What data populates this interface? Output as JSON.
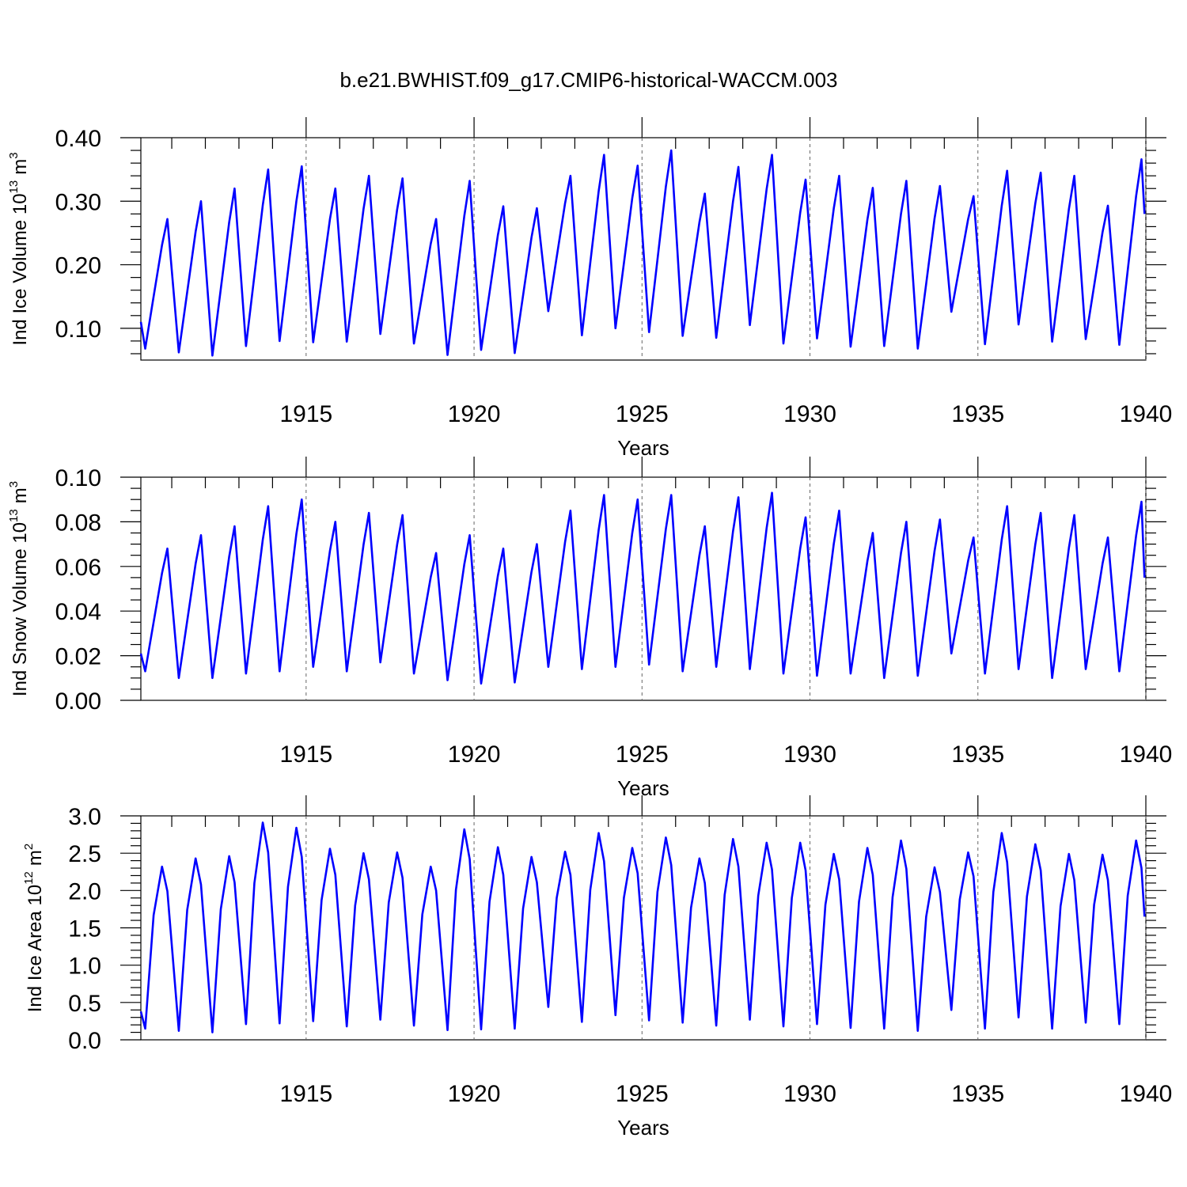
{
  "chart_data": [
    {
      "type": "line",
      "title": "b.e21.BWHIST.f09_g17.CMIP6-historical-WACCM.003",
      "ylabel": "Ind Ice Volume 10",
      "ylabel_exponent": "13",
      "ylabel_unit": "m",
      "ylabel_unit_exponent": "3",
      "xlabel": "Years",
      "color": "#0000ff",
      "xgrid": true,
      "xlim": [
        1910.08,
        1940
      ],
      "xticks": [
        1915,
        1920,
        1925,
        1930,
        1935,
        1940
      ],
      "xminor": [
        1911,
        1912,
        1913,
        1914,
        1916,
        1917,
        1918,
        1919,
        1921,
        1922,
        1923,
        1924,
        1926,
        1927,
        1928,
        1929,
        1931,
        1932,
        1933,
        1934,
        1936,
        1937,
        1938,
        1939
      ],
      "ylim": [
        0.05,
        0.4
      ],
      "yticks": [
        {
          "value": 0.1,
          "label": "0.10"
        },
        {
          "value": 0.2,
          "label": "0.20"
        },
        {
          "value": 0.3,
          "label": "0.30"
        },
        {
          "value": 0.4,
          "label": "0.40"
        }
      ],
      "yminor": [
        0.06,
        0.08,
        0.12,
        0.14,
        0.16,
        0.18,
        0.22,
        0.24,
        0.26,
        0.28,
        0.32,
        0.34,
        0.36,
        0.38
      ],
      "x": [
        1910.08,
        1910.21,
        1910.46,
        1910.71,
        1910.87,
        1911.21,
        1911.46,
        1911.71,
        1911.87,
        1912.21,
        1912.46,
        1912.71,
        1912.87,
        1913.21,
        1913.46,
        1913.71,
        1913.87,
        1914.21,
        1914.46,
        1914.71,
        1914.87,
        1915.21,
        1915.46,
        1915.71,
        1915.87,
        1916.21,
        1916.46,
        1916.71,
        1916.87,
        1917.21,
        1917.46,
        1917.71,
        1917.87,
        1918.21,
        1918.46,
        1918.71,
        1918.87,
        1919.21,
        1919.46,
        1919.71,
        1919.87,
        1920.21,
        1920.46,
        1920.71,
        1920.87,
        1921.21,
        1921.46,
        1921.71,
        1921.87,
        1922.21,
        1922.46,
        1922.71,
        1922.87,
        1923.21,
        1923.46,
        1923.71,
        1923.87,
        1924.21,
        1924.46,
        1924.71,
        1924.87,
        1925.21,
        1925.46,
        1925.71,
        1925.87,
        1926.21,
        1926.46,
        1926.71,
        1926.87,
        1927.21,
        1927.46,
        1927.71,
        1927.87,
        1928.21,
        1928.46,
        1928.71,
        1928.87,
        1929.21,
        1929.46,
        1929.71,
        1929.87,
        1930.21,
        1930.46,
        1930.71,
        1930.87,
        1931.21,
        1931.46,
        1931.71,
        1931.87,
        1932.21,
        1932.46,
        1932.71,
        1932.87,
        1933.21,
        1933.46,
        1933.71,
        1933.87,
        1934.21,
        1934.46,
        1934.71,
        1934.87,
        1935.21,
        1935.46,
        1935.71,
        1935.87,
        1936.21,
        1936.46,
        1936.71,
        1936.87,
        1937.21,
        1937.46,
        1937.71,
        1937.87,
        1938.21,
        1938.46,
        1938.71,
        1938.87,
        1939.21,
        1939.46,
        1939.71,
        1939.87,
        1939.96
      ],
      "values": [
        0.11,
        0.068,
        0.15,
        0.231,
        0.272,
        0.062,
        0.157,
        0.252,
        0.3,
        0.057,
        0.162,
        0.267,
        0.32,
        0.072,
        0.183,
        0.294,
        0.35,
        0.08,
        0.19,
        0.3,
        0.355,
        0.078,
        0.175,
        0.272,
        0.32,
        0.079,
        0.183,
        0.288,
        0.34,
        0.091,
        0.189,
        0.287,
        0.336,
        0.076,
        0.154,
        0.233,
        0.272,
        0.058,
        0.168,
        0.277,
        0.332,
        0.066,
        0.156,
        0.247,
        0.292,
        0.061,
        0.152,
        0.243,
        0.289,
        0.127,
        0.212,
        0.297,
        0.34,
        0.089,
        0.203,
        0.316,
        0.373,
        0.1,
        0.202,
        0.305,
        0.356,
        0.094,
        0.208,
        0.323,
        0.38,
        0.088,
        0.178,
        0.267,
        0.312,
        0.085,
        0.193,
        0.3,
        0.354,
        0.105,
        0.212,
        0.319,
        0.373,
        0.076,
        0.179,
        0.282,
        0.334,
        0.084,
        0.186,
        0.289,
        0.34,
        0.071,
        0.171,
        0.271,
        0.321,
        0.072,
        0.176,
        0.28,
        0.332,
        0.068,
        0.17,
        0.273,
        0.324,
        0.126,
        0.199,
        0.272,
        0.308,
        0.075,
        0.184,
        0.293,
        0.348,
        0.106,
        0.202,
        0.297,
        0.345,
        0.079,
        0.183,
        0.288,
        0.34,
        0.083,
        0.167,
        0.251,
        0.293,
        0.074,
        0.191,
        0.308,
        0.366,
        0.28
      ]
    },
    {
      "type": "line",
      "ylabel": "Ind Snow Volume 10",
      "ylabel_exponent": "13",
      "ylabel_unit": "m",
      "ylabel_unit_exponent": "3",
      "xlabel": "Years",
      "color": "#0000ff",
      "xgrid": true,
      "xlim": [
        1910.08,
        1940
      ],
      "xticks": [
        1915,
        1920,
        1925,
        1930,
        1935,
        1940
      ],
      "xminor": [
        1911,
        1912,
        1913,
        1914,
        1916,
        1917,
        1918,
        1919,
        1921,
        1922,
        1923,
        1924,
        1926,
        1927,
        1928,
        1929,
        1931,
        1932,
        1933,
        1934,
        1936,
        1937,
        1938,
        1939
      ],
      "ylim": [
        0,
        0.1
      ],
      "yticks": [
        {
          "value": 0,
          "label": "0.00"
        },
        {
          "value": 0.02,
          "label": "0.02"
        },
        {
          "value": 0.04,
          "label": "0.04"
        },
        {
          "value": 0.06,
          "label": "0.06"
        },
        {
          "value": 0.08,
          "label": "0.08"
        },
        {
          "value": 0.1,
          "label": "0.10"
        }
      ],
      "yminor": [
        0.005,
        0.01,
        0.015,
        0.025,
        0.03,
        0.035,
        0.045,
        0.05,
        0.055,
        0.065,
        0.07,
        0.075,
        0.085,
        0.09,
        0.095
      ],
      "x": [
        1910.08,
        1910.21,
        1910.46,
        1910.71,
        1910.87,
        1911.21,
        1911.46,
        1911.71,
        1911.87,
        1912.21,
        1912.46,
        1912.71,
        1912.87,
        1913.21,
        1913.46,
        1913.71,
        1913.87,
        1914.21,
        1914.46,
        1914.71,
        1914.87,
        1915.21,
        1915.46,
        1915.71,
        1915.87,
        1916.21,
        1916.46,
        1916.71,
        1916.87,
        1917.21,
        1917.46,
        1917.71,
        1917.87,
        1918.21,
        1918.46,
        1918.71,
        1918.87,
        1919.21,
        1919.46,
        1919.71,
        1919.87,
        1920.21,
        1920.46,
        1920.71,
        1920.87,
        1921.21,
        1921.46,
        1921.71,
        1921.87,
        1922.21,
        1922.46,
        1922.71,
        1922.87,
        1923.21,
        1923.46,
        1923.71,
        1923.87,
        1924.21,
        1924.46,
        1924.71,
        1924.87,
        1925.21,
        1925.46,
        1925.71,
        1925.87,
        1926.21,
        1926.46,
        1926.71,
        1926.87,
        1927.21,
        1927.46,
        1927.71,
        1927.87,
        1928.21,
        1928.46,
        1928.71,
        1928.87,
        1929.21,
        1929.46,
        1929.71,
        1929.87,
        1930.21,
        1930.46,
        1930.71,
        1930.87,
        1931.21,
        1931.46,
        1931.71,
        1931.87,
        1932.21,
        1932.46,
        1932.71,
        1932.87,
        1933.21,
        1933.46,
        1933.71,
        1933.87,
        1934.21,
        1934.46,
        1934.71,
        1934.87,
        1935.21,
        1935.46,
        1935.71,
        1935.87,
        1936.21,
        1936.46,
        1936.71,
        1936.87,
        1937.21,
        1937.46,
        1937.71,
        1937.87,
        1938.21,
        1938.46,
        1938.71,
        1938.87,
        1939.21,
        1939.46,
        1939.71,
        1939.87,
        1939.96
      ],
      "values": [
        0.021,
        0.013,
        0.035,
        0.057,
        0.068,
        0.01,
        0.0356,
        0.0612,
        0.074,
        0.01,
        0.0372,
        0.0644,
        0.078,
        0.012,
        0.042,
        0.072,
        0.087,
        0.013,
        0.0438,
        0.0746,
        0.09,
        0.015,
        0.041,
        0.067,
        0.08,
        0.013,
        0.0414,
        0.0698,
        0.084,
        0.017,
        0.0434,
        0.0698,
        0.083,
        0.012,
        0.0336,
        0.0552,
        0.066,
        0.009,
        0.035,
        0.061,
        0.074,
        0.0075,
        0.0317,
        0.0559,
        0.068,
        0.008,
        0.0328,
        0.0576,
        0.07,
        0.015,
        0.043,
        0.071,
        0.085,
        0.014,
        0.0452,
        0.0764,
        0.092,
        0.015,
        0.045,
        0.075,
        0.09,
        0.016,
        0.0464,
        0.0768,
        0.092,
        0.013,
        0.039,
        0.065,
        0.078,
        0.015,
        0.0454,
        0.0758,
        0.091,
        0.014,
        0.0456,
        0.0772,
        0.093,
        0.012,
        0.04,
        0.068,
        0.082,
        0.011,
        0.0406,
        0.0702,
        0.085,
        0.012,
        0.0372,
        0.0624,
        0.075,
        0.01,
        0.038,
        0.066,
        0.08,
        0.011,
        0.039,
        0.067,
        0.081,
        0.021,
        0.0418,
        0.0626,
        0.073,
        0.012,
        0.042,
        0.072,
        0.087,
        0.014,
        0.042,
        0.07,
        0.084,
        0.01,
        0.0392,
        0.0684,
        0.083,
        0.014,
        0.0376,
        0.0612,
        0.073,
        0.013,
        0.0434,
        0.0738,
        0.089,
        0.055
      ]
    },
    {
      "type": "line",
      "ylabel": "Ind Ice Area 10",
      "ylabel_exponent": "12",
      "ylabel_unit": "m",
      "ylabel_unit_exponent": "2",
      "xlabel": "Years",
      "color": "#0000ff",
      "xgrid": true,
      "xlim": [
        1910.08,
        1940
      ],
      "xticks": [
        1915,
        1920,
        1925,
        1930,
        1935,
        1940
      ],
      "xminor": [
        1911,
        1912,
        1913,
        1914,
        1916,
        1917,
        1918,
        1919,
        1921,
        1922,
        1923,
        1924,
        1926,
        1927,
        1928,
        1929,
        1931,
        1932,
        1933,
        1934,
        1936,
        1937,
        1938,
        1939
      ],
      "ylim": [
        0,
        3
      ],
      "yticks": [
        {
          "value": 0,
          "label": "0.0"
        },
        {
          "value": 0.5,
          "label": "0.5"
        },
        {
          "value": 1,
          "label": "1.0"
        },
        {
          "value": 1.5,
          "label": "1.5"
        },
        {
          "value": 2,
          "label": "2.0"
        },
        {
          "value": 2.5,
          "label": "2.5"
        },
        {
          "value": 3,
          "label": "3.0"
        }
      ],
      "yminor": [
        0.1,
        0.2,
        0.3,
        0.4,
        0.6,
        0.7,
        0.8,
        0.9,
        1.1,
        1.2,
        1.3,
        1.4,
        1.6,
        1.7,
        1.8,
        1.9,
        2.1,
        2.2,
        2.3,
        2.4,
        2.6,
        2.7,
        2.8,
        2.9
      ],
      "x": [
        1910.08,
        1910.21,
        1910.46,
        1910.71,
        1910.87,
        1911.21,
        1911.46,
        1911.71,
        1911.87,
        1912.21,
        1912.46,
        1912.71,
        1912.87,
        1913.21,
        1913.46,
        1913.71,
        1913.87,
        1914.21,
        1914.46,
        1914.71,
        1914.87,
        1915.21,
        1915.46,
        1915.71,
        1915.87,
        1916.21,
        1916.46,
        1916.71,
        1916.87,
        1917.21,
        1917.46,
        1917.71,
        1917.87,
        1918.21,
        1918.46,
        1918.71,
        1918.87,
        1919.21,
        1919.46,
        1919.71,
        1919.87,
        1920.21,
        1920.46,
        1920.71,
        1920.87,
        1921.21,
        1921.46,
        1921.71,
        1921.87,
        1922.21,
        1922.46,
        1922.71,
        1922.87,
        1923.21,
        1923.46,
        1923.71,
        1923.87,
        1924.21,
        1924.46,
        1924.71,
        1924.87,
        1925.21,
        1925.46,
        1925.71,
        1925.87,
        1926.21,
        1926.46,
        1926.71,
        1926.87,
        1927.21,
        1927.46,
        1927.71,
        1927.87,
        1928.21,
        1928.46,
        1928.71,
        1928.87,
        1929.21,
        1929.46,
        1929.71,
        1929.87,
        1930.21,
        1930.46,
        1930.71,
        1930.87,
        1931.21,
        1931.46,
        1931.71,
        1931.87,
        1932.21,
        1932.46,
        1932.71,
        1932.87,
        1933.21,
        1933.46,
        1933.71,
        1933.87,
        1934.21,
        1934.46,
        1934.71,
        1934.87,
        1935.21,
        1935.46,
        1935.71,
        1935.87,
        1936.21,
        1936.46,
        1936.71,
        1936.87,
        1937.21,
        1937.46,
        1937.71,
        1937.87,
        1938.21,
        1938.46,
        1938.71,
        1938.87,
        1939.21,
        1939.46,
        1939.71,
        1939.87,
        1939.96
      ],
      "values": [
        0.38,
        0.15,
        1.67,
        2.32,
        1.99,
        0.12,
        1.74,
        2.43,
        2.08,
        0.1,
        1.75,
        2.46,
        2.11,
        0.21,
        2.1,
        2.91,
        2.51,
        0.22,
        2.05,
        2.84,
        2.45,
        0.25,
        1.87,
        2.56,
        2.21,
        0.18,
        1.8,
        2.5,
        2.15,
        0.27,
        1.84,
        2.51,
        2.17,
        0.19,
        1.68,
        2.32,
        2.0,
        0.13,
        2.01,
        2.82,
        2.42,
        0.14,
        1.85,
        2.58,
        2.21,
        0.15,
        1.76,
        2.45,
        2.11,
        0.44,
        1.9,
        2.52,
        2.21,
        0.24,
        2.01,
        2.77,
        2.39,
        0.33,
        1.9,
        2.57,
        2.23,
        0.26,
        1.98,
        2.71,
        2.34,
        0.23,
        1.77,
        2.43,
        2.1,
        0.19,
        1.94,
        2.69,
        2.32,
        0.27,
        1.93,
        2.64,
        2.28,
        0.18,
        1.9,
        2.64,
        2.27,
        0.21,
        1.81,
        2.49,
        2.15,
        0.16,
        1.85,
        2.57,
        2.21,
        0.15,
        1.91,
        2.67,
        2.29,
        0.12,
        1.65,
        2.31,
        1.98,
        0.4,
        1.88,
        2.51,
        2.19,
        0.15,
        1.98,
        2.77,
        2.38,
        0.3,
        1.92,
        2.62,
        2.27,
        0.15,
        1.79,
        2.49,
        2.14,
        0.23,
        1.81,
        2.48,
        2.14,
        0.21,
        1.93,
        2.67,
        2.3,
        1.65
      ]
    }
  ]
}
